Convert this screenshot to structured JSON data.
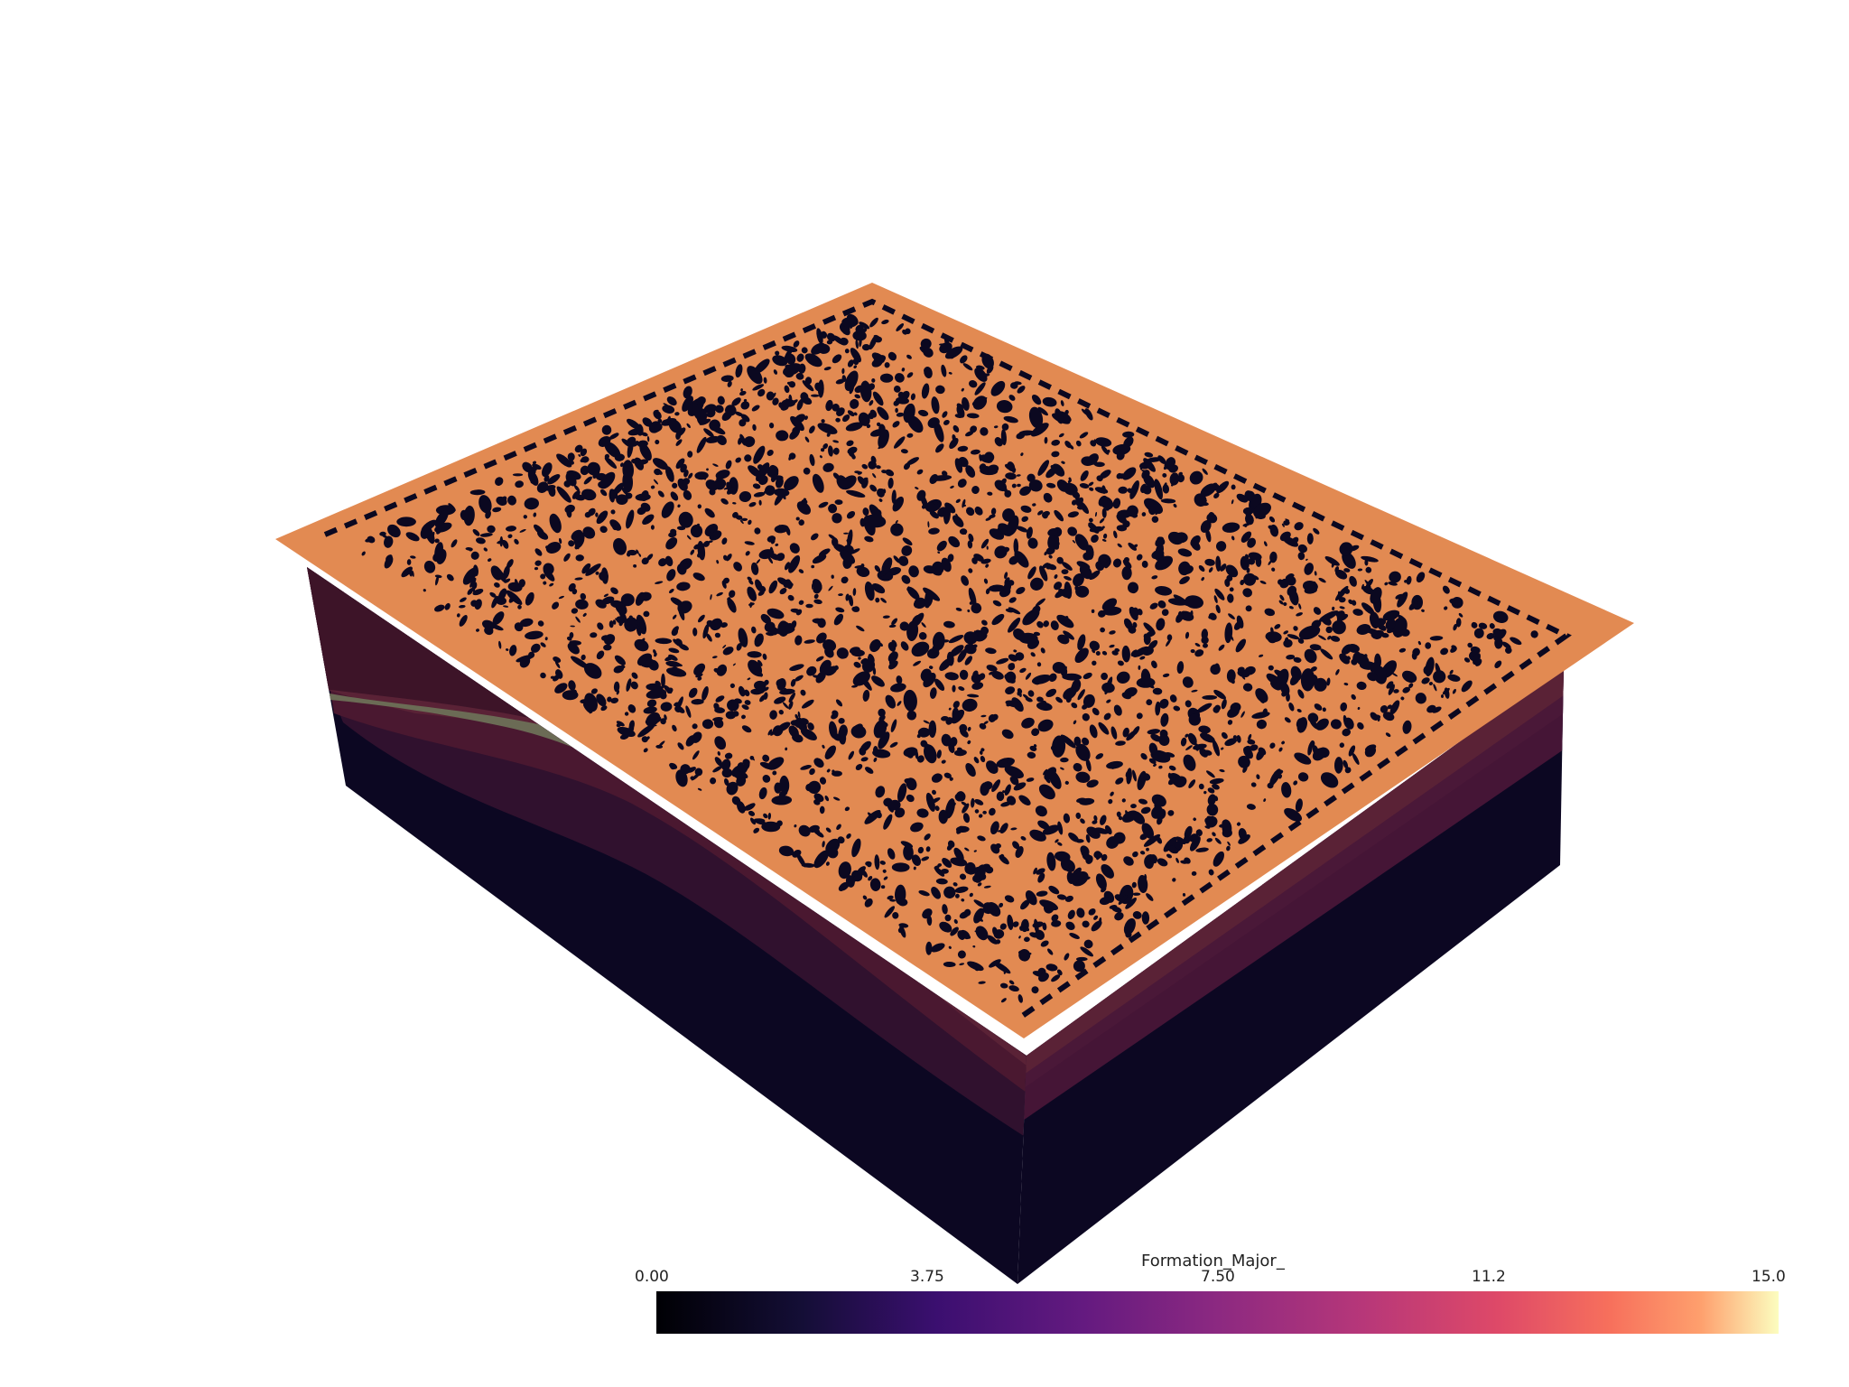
{
  "scalar_bar": {
    "title": "Formation_Major_",
    "ticks": [
      "0.00",
      "3.75",
      "7.50",
      "11.2",
      "15.0"
    ],
    "range": [
      0,
      15
    ],
    "colormap": "magma"
  },
  "model": {
    "top_surface_color": "#e28a52",
    "texture_color": "#0b0820",
    "layer_colors": [
      "#3d1428",
      "#5a2a36",
      "#6b6b55",
      "#4a1830",
      "#30112e",
      "#0c0722"
    ]
  }
}
